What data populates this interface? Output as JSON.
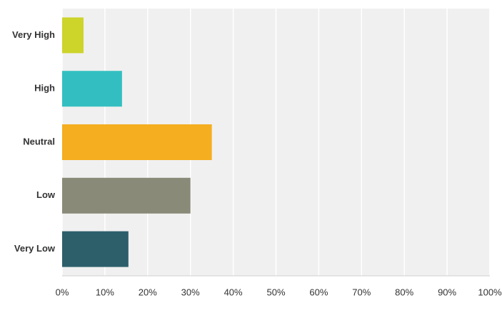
{
  "chart_data": {
    "type": "hbar",
    "categories": [
      "Very High",
      "High",
      "Neutral",
      "Low",
      "Very Low"
    ],
    "values": [
      5,
      14,
      35,
      30,
      15.5
    ],
    "colors": [
      "#cdd42a",
      "#33bfc1",
      "#f5ae1f",
      "#8a8a78",
      "#2d5f6b"
    ],
    "xlim": [
      0,
      100
    ],
    "xticks": [
      {
        "value": 0,
        "label": "0%"
      },
      {
        "value": 10,
        "label": "10%"
      },
      {
        "value": 20,
        "label": "20%"
      },
      {
        "value": 30,
        "label": "30%"
      },
      {
        "value": 40,
        "label": "40%"
      },
      {
        "value": 50,
        "label": "50%"
      },
      {
        "value": 60,
        "label": "60%"
      },
      {
        "value": 70,
        "label": "70%"
      },
      {
        "value": 80,
        "label": "80%"
      },
      {
        "value": 90,
        "label": "90%"
      },
      {
        "value": 100,
        "label": "100%"
      }
    ],
    "grid": true
  }
}
